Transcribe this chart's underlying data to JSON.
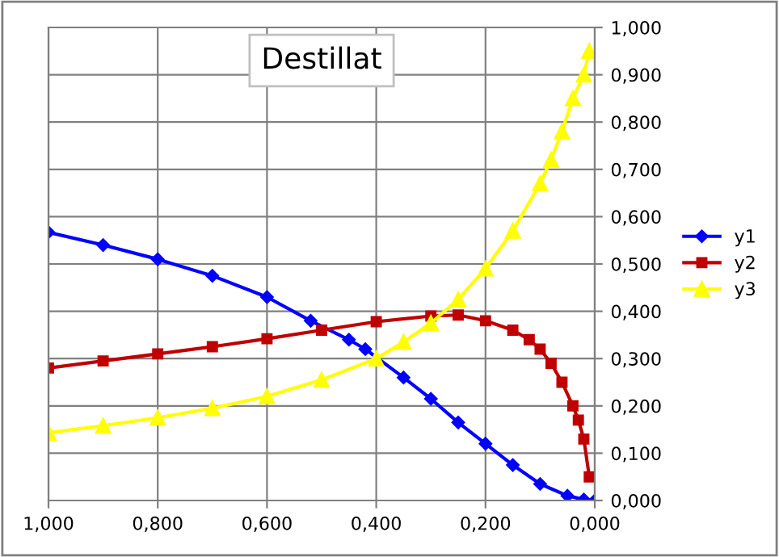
{
  "chart_data": {
    "type": "line",
    "title": "Destillat",
    "xlim": [
      1.0,
      0.0
    ],
    "xticks": [
      {
        "value": 1.0,
        "label": "1,000"
      },
      {
        "value": 0.8,
        "label": "0,800"
      },
      {
        "value": 0.6,
        "label": "0,600"
      },
      {
        "value": 0.4,
        "label": "0,400"
      },
      {
        "value": 0.2,
        "label": "0,200"
      },
      {
        "value": 0.0,
        "label": "0,000"
      }
    ],
    "ylim": [
      0.0,
      1.0
    ],
    "yticks": [
      {
        "value": 0.0,
        "label": "0,000"
      },
      {
        "value": 0.1,
        "label": "0,100"
      },
      {
        "value": 0.2,
        "label": "0,200"
      },
      {
        "value": 0.3,
        "label": "0,300"
      },
      {
        "value": 0.4,
        "label": "0,400"
      },
      {
        "value": 0.5,
        "label": "0,500"
      },
      {
        "value": 0.6,
        "label": "0,600"
      },
      {
        "value": 0.7,
        "label": "0,700"
      },
      {
        "value": 0.8,
        "label": "0,800"
      },
      {
        "value": 0.9,
        "label": "0,900"
      },
      {
        "value": 1.0,
        "label": "1,000"
      }
    ],
    "grid": true,
    "legend": "right",
    "line_style": "solid",
    "series": [
      {
        "name": "y1",
        "color": "#0000ff",
        "marker": "diamond",
        "x": [
          1.0,
          0.9,
          0.8,
          0.7,
          0.6,
          0.52,
          0.45,
          0.42,
          0.35,
          0.3,
          0.25,
          0.2,
          0.15,
          0.1,
          0.05,
          0.02,
          0.0
        ],
        "values": [
          0.567,
          0.54,
          0.51,
          0.475,
          0.43,
          0.38,
          0.34,
          0.32,
          0.26,
          0.215,
          0.165,
          0.12,
          0.075,
          0.035,
          0.01,
          0.002,
          0.0
        ]
      },
      {
        "name": "y2",
        "color": "#c00000",
        "marker": "square",
        "x": [
          1.0,
          0.9,
          0.8,
          0.7,
          0.6,
          0.5,
          0.4,
          0.3,
          0.25,
          0.2,
          0.15,
          0.12,
          0.1,
          0.08,
          0.06,
          0.04,
          0.03,
          0.02,
          0.01
        ],
        "values": [
          0.28,
          0.295,
          0.31,
          0.325,
          0.342,
          0.36,
          0.378,
          0.39,
          0.392,
          0.38,
          0.36,
          0.34,
          0.32,
          0.29,
          0.25,
          0.2,
          0.17,
          0.13,
          0.05
        ]
      },
      {
        "name": "y3",
        "color": "#ffff00",
        "marker": "triangle",
        "x": [
          1.0,
          0.9,
          0.8,
          0.7,
          0.6,
          0.5,
          0.4,
          0.35,
          0.3,
          0.25,
          0.2,
          0.15,
          0.1,
          0.08,
          0.06,
          0.04,
          0.02,
          0.01
        ],
        "values": [
          0.143,
          0.158,
          0.175,
          0.195,
          0.22,
          0.255,
          0.3,
          0.335,
          0.375,
          0.425,
          0.49,
          0.57,
          0.67,
          0.72,
          0.78,
          0.85,
          0.9,
          0.95
        ]
      }
    ]
  }
}
